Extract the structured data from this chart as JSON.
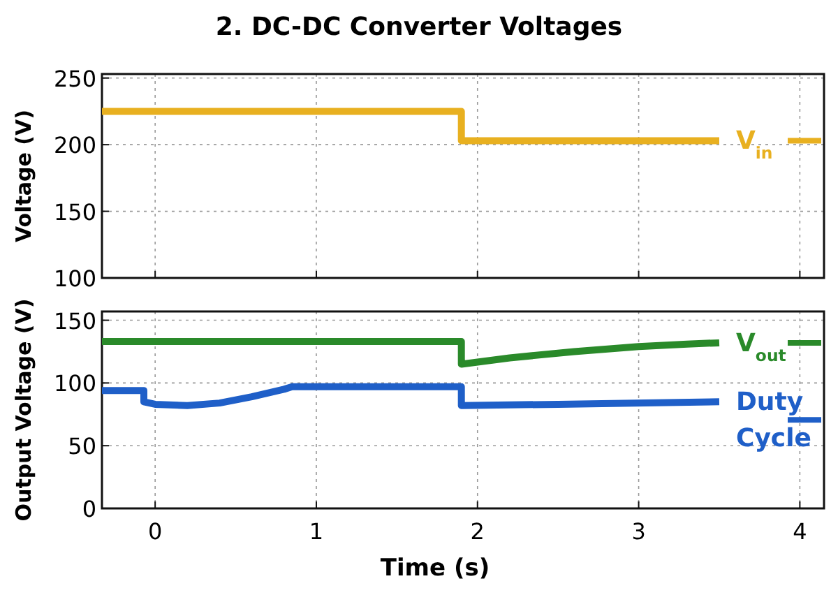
{
  "chart_data": [
    {
      "type": "line",
      "title": "2. DC-DC Converter Voltages",
      "ylabel": "Voltage (V)",
      "xlim": [
        -0.33,
        4.15
      ],
      "xticks": [
        0,
        1,
        2,
        3,
        4
      ],
      "ylim": [
        100,
        253
      ],
      "yticks": [
        100,
        150,
        200,
        250
      ],
      "grid": true,
      "legend": "right",
      "tick_labels": "y",
      "line_style": "solid",
      "series": [
        {
          "name": "V$_{in}$",
          "color": "#e8b020",
          "x": [
            -0.33,
            1.9,
            1.9,
            3.5
          ],
          "values": [
            225,
            225,
            203,
            203
          ]
        }
      ]
    },
    {
      "type": "line",
      "xlabel": "Time (s)",
      "ylabel": "Output Voltage (V)",
      "xlim": [
        -0.33,
        4.15
      ],
      "xticks": [
        0,
        1,
        2,
        3,
        4
      ],
      "ylim": [
        0,
        157
      ],
      "yticks": [
        0,
        50,
        100,
        150
      ],
      "grid": true,
      "legend": "right",
      "line_style": "solid",
      "series": [
        {
          "name": "V$_{out}$",
          "color": "#2a8a2a",
          "x": [
            -0.33,
            1.9,
            1.9,
            2.2,
            2.6,
            3.0,
            3.3,
            3.5
          ],
          "values": [
            133,
            133,
            115,
            120,
            125,
            129,
            131,
            132
          ]
        },
        {
          "name": "Duty Cycle",
          "color": "#1f5fc8",
          "x": [
            -0.33,
            -0.07,
            -0.07,
            0,
            0.2,
            0.4,
            0.6,
            0.8,
            0.85,
            1.9,
            1.9,
            2.5,
            3.5
          ],
          "values": [
            94,
            94,
            85,
            83,
            82,
            84,
            89,
            95,
            97,
            97,
            82,
            83,
            85
          ]
        }
      ]
    }
  ]
}
